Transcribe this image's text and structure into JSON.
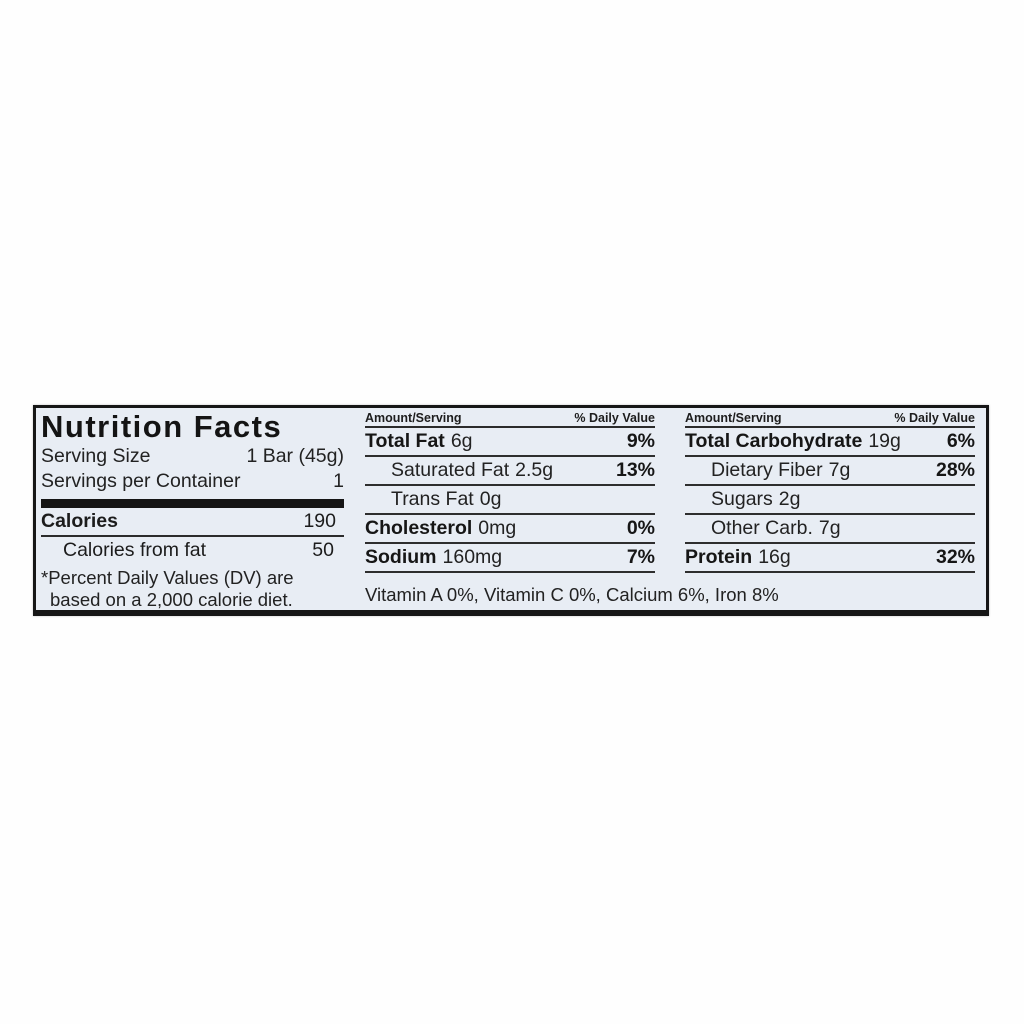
{
  "label": {
    "title": "Nutrition Facts",
    "serving_size_label": "Serving Size",
    "serving_size_value": "1 Bar (45g)",
    "servings_label": "Servings per Container",
    "servings_value": "1",
    "calories_label": "Calories",
    "calories_value": "190",
    "calories_fat_label": "Calories from fat",
    "calories_fat_value": "50",
    "footnote": "*Percent Daily Values (DV) are based on a 2,000 calorie diet."
  },
  "columns": [
    {
      "header_amount": "Amount/Serving",
      "header_dv": "% Daily Value",
      "rows": [
        {
          "name": "Total Fat",
          "amount": "6g",
          "dv": "9%"
        },
        {
          "name": "Saturated Fat",
          "amount": "2.5g",
          "dv": "13%"
        },
        {
          "name": "Trans Fat",
          "amount": "0g",
          "dv": ""
        },
        {
          "name": "Cholesterol",
          "amount": "0mg",
          "dv": "0%"
        },
        {
          "name": "Sodium",
          "amount": "160mg",
          "dv": "7%"
        }
      ]
    },
    {
      "header_amount": "Amount/Serving",
      "header_dv": "% Daily Value",
      "rows": [
        {
          "name": "Total Carbohydrate",
          "amount": "19g",
          "dv": "6%"
        },
        {
          "name": "Dietary Fiber",
          "amount": "7g",
          "dv": "28%"
        },
        {
          "name": "Sugars",
          "amount": "2g",
          "dv": ""
        },
        {
          "name": "Other Carb.",
          "amount": "7g",
          "dv": ""
        },
        {
          "name": "Protein",
          "amount": "16g",
          "dv": "32%"
        }
      ]
    }
  ],
  "vitamins_line": "Vitamin A 0%, Vitamin C 0%, Calcium 6%, Iron 8%",
  "colors": {
    "label_background": "#e8edf4",
    "border": "#161616",
    "rule_lines": "#2b2b2b",
    "text": "#1c1c1c",
    "page_background": "#fefefe"
  }
}
